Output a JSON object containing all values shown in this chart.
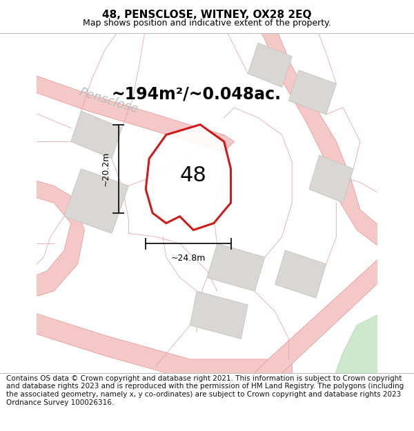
{
  "title": "48, PENSCLOSE, WITNEY, OX28 2EQ",
  "subtitle": "Map shows position and indicative extent of the property.",
  "footer": "Contains OS data © Crown copyright and database right 2021. This information is subject to Crown copyright and database rights 2023 and is reproduced with the permission of HM Land Registry. The polygons (including the associated geometry, namely x, y co-ordinates) are subject to Crown copyright and database rights 2023 Ordnance Survey 100026316.",
  "area_text": "~194m²/~0.048ac.",
  "number_label": "48",
  "dim_height": "~20.2m",
  "dim_width": "~24.8m",
  "street_name": "Pensclose",
  "map_bg": "#f2f0ed",
  "plot_outline_color": "#cc0000",
  "building_color": "#d9d7d3",
  "building_edge": "#c8c6c2",
  "road_fill": "#f5c8c8",
  "road_edge": "#e89090",
  "boundary_color": "#e8a0a0",
  "dim_color": "#111111",
  "street_color": "#bbbbbb",
  "green_color": "#cde8cd",
  "green_edge": "#b0d0b0",
  "title_fontsize": 11,
  "subtitle_fontsize": 9,
  "footer_fontsize": 7.5,
  "area_fontsize": 17,
  "number_fontsize": 22,
  "street_fontsize": 13,
  "dim_fontsize": 9
}
